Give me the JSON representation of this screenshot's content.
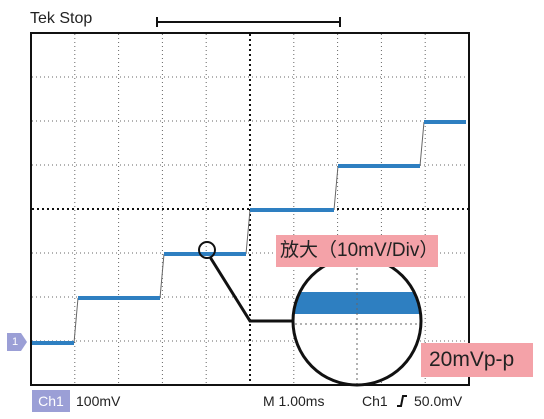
{
  "screen": {
    "title": "Tek Stop",
    "zoom_label": "放大（10mV/Div）",
    "vpp_label": "20mVp-p"
  },
  "status": {
    "channel": "Ch1",
    "volts_div": "100mV",
    "timebase": "M 1.00ms",
    "trigger_channel": "Ch1",
    "trigger_icon": "rising-edge-icon",
    "trigger_level": "50.0mV"
  },
  "channel_marker": {
    "label": "1"
  },
  "colors": {
    "trace": "#2e7fc1",
    "chip": "#9b9fd6",
    "callout": "#f4a2a8"
  },
  "waveform": {
    "levels_mV": [
      -310,
      -210,
      -110,
      -10,
      90,
      190
    ],
    "steps_count": 6
  }
}
